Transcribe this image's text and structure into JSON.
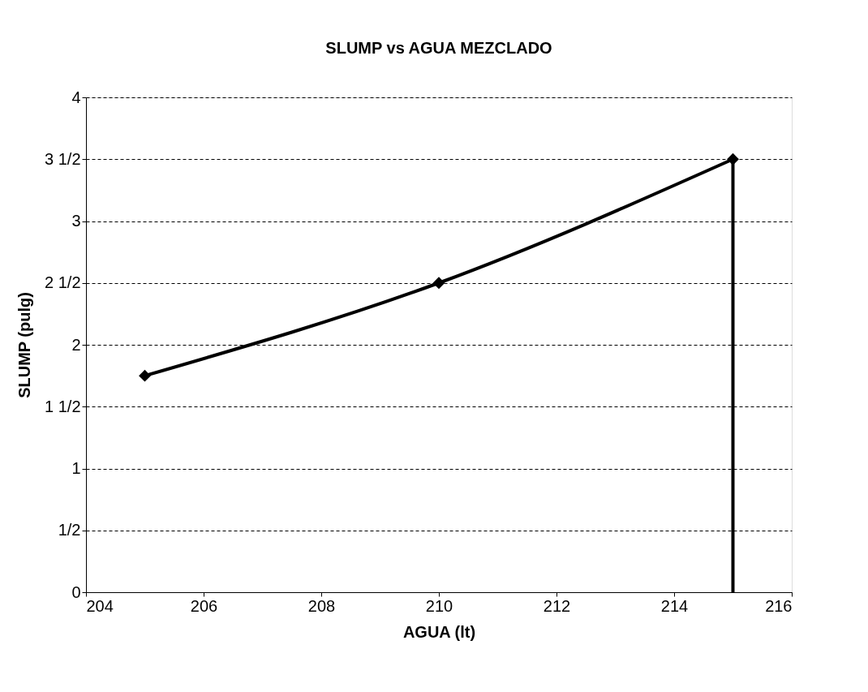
{
  "chart_data": {
    "type": "line",
    "title": "SLUMP  vs  AGUA MEZCLADO",
    "xlabel": "AGUA (lt)",
    "ylabel": "SLUMP (pulg)",
    "series": [
      {
        "color": "#000000",
        "x": [
          205,
          210,
          215
        ],
        "values": [
          1.75,
          2.5,
          3.5
        ],
        "marker": "diamond"
      },
      {
        "color": "#000000",
        "x": [
          215,
          215
        ],
        "values": [
          3.5,
          0
        ],
        "marker": "none"
      }
    ],
    "xlim": [
      204,
      216
    ],
    "xticks": [
      204,
      206,
      208,
      210,
      212,
      214,
      216
    ],
    "ylim": [
      0,
      4
    ],
    "yticks": [
      0,
      {
        "value": 0.5,
        "label": "1/2"
      },
      1,
      {
        "value": 1.5,
        "label": "1 1/2"
      },
      2,
      {
        "value": 2.5,
        "label": "2 1/2"
      },
      3,
      {
        "value": 3.5,
        "label": "3 1/2"
      },
      4
    ],
    "grid": "y",
    "line_style": "solid"
  }
}
